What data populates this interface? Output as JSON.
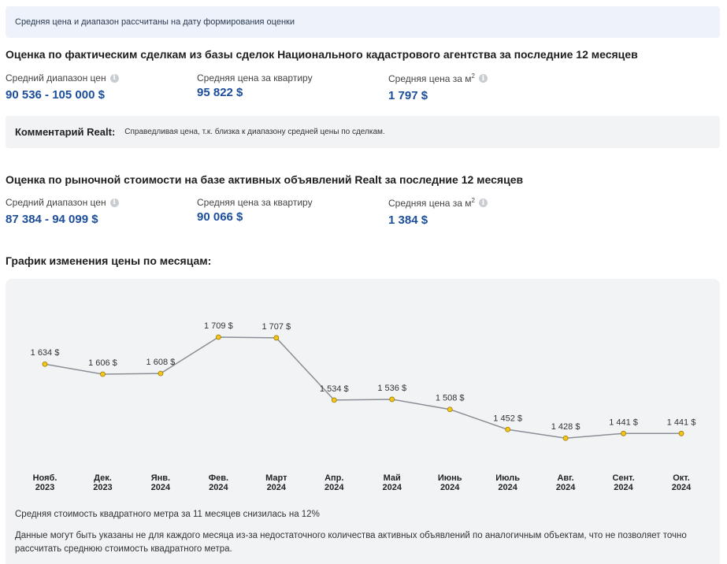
{
  "notice": "Средняя цена и диапазон рассчитаны на дату формирования оценки",
  "deals": {
    "title": "Оценка по фактическим сделкам из базы сделок Национального кадастрового агентства за последние 12 месяцев",
    "range_label": "Средний диапазон цен",
    "range_value": "90 536 - 105 000 $",
    "avg_label": "Средняя цена за квартиру",
    "avg_value": "95 822 $",
    "sqm_label": "Средняя цена за м",
    "sqm_sup": "2",
    "sqm_value": "1 797 $"
  },
  "comment": {
    "label": "Комментарий Realt:",
    "text": "Справедливая цена, т.к. близка к диапазону средней цены по сделкам."
  },
  "market": {
    "title": "Оценка по рыночной стоимости на базе активных объявлений Realt за последние 12 месяцев",
    "range_label": "Средний диапазон цен",
    "range_value": "87 384 - 94 099 $",
    "avg_label": "Средняя цена за квартиру",
    "avg_value": "90 066 $",
    "sqm_label": "Средняя цена за м",
    "sqm_sup": "2",
    "sqm_value": "1 384 $"
  },
  "chart_title": "График изменения цены по месяцам:",
  "info_icon_glyph": "i",
  "chart_data": {
    "type": "line",
    "categories": [
      [
        "Нояб.",
        "2023"
      ],
      [
        "Дек.",
        "2023"
      ],
      [
        "Янв.",
        "2024"
      ],
      [
        "Фев.",
        "2024"
      ],
      [
        "Март",
        "2024"
      ],
      [
        "Апр.",
        "2024"
      ],
      [
        "Май",
        "2024"
      ],
      [
        "Июнь",
        "2024"
      ],
      [
        "Июль",
        "2024"
      ],
      [
        "Авг.",
        "2024"
      ],
      [
        "Сент.",
        "2024"
      ],
      [
        "Окт.",
        "2024"
      ]
    ],
    "values": [
      1634,
      1606,
      1608,
      1709,
      1707,
      1534,
      1536,
      1508,
      1452,
      1428,
      1441,
      1441
    ],
    "labels": [
      "1 634 $",
      "1 606 $",
      "1 608 $",
      "1 709 $",
      "1 707 $",
      "1 534 $",
      "1 536 $",
      "1 508 $",
      "1 452 $",
      "1 428 $",
      "1 441 $",
      "1 441 $"
    ],
    "ylim": [
      1400,
      1720
    ],
    "line_color": "#8a8f96",
    "point_color": "#f5c518",
    "point_stroke": "#9a7a00"
  },
  "footnote_1": "Средняя стоимость квадратного метра за 11 месяцев снизилась на 12%",
  "footnote_2": "Данные могут быть указаны не для каждого месяца из-за недостаточного количества активных объявлений по аналогичным объектам, что не позволяет точно рассчитать среднюю стоимость квадратного метра."
}
